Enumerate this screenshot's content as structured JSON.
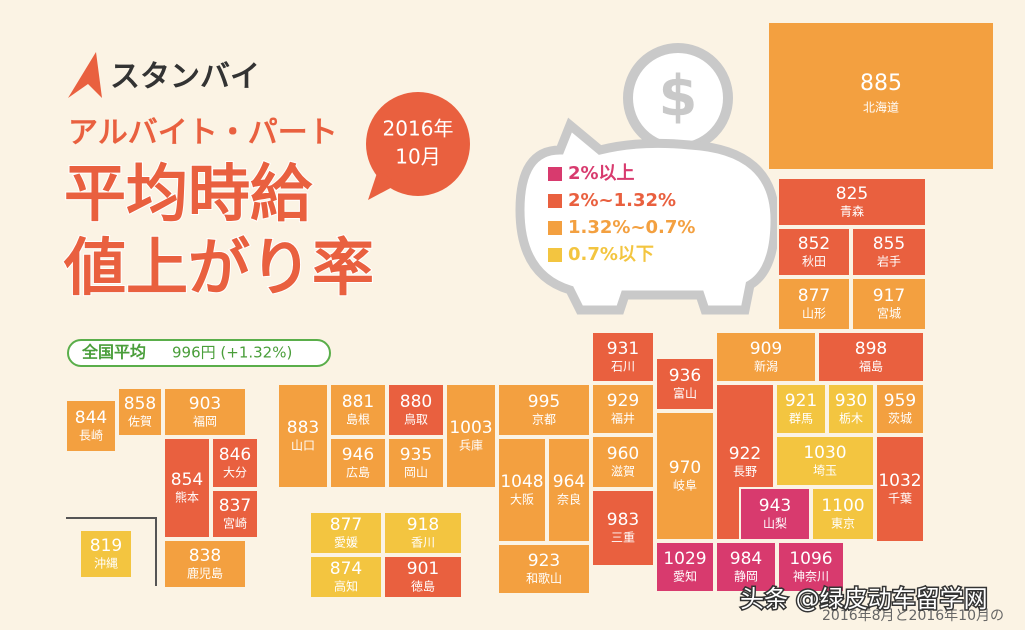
{
  "header": {
    "logo": "スタンバイ",
    "subtitle": "アルバイト・パート",
    "title_line1": "平均時給",
    "title_line2": "値上がり率",
    "date_year": "2016年",
    "date_month": "10月",
    "national_label": "全国平均",
    "national_value": "996円 (+1.32%)"
  },
  "legend": [
    {
      "label": "2%以上",
      "color": "#d83a6e"
    },
    {
      "label": "2%~1.32%",
      "color": "#e9603f"
    },
    {
      "label": "1.32%~0.7%",
      "color": "#f3a040"
    },
    {
      "label": "0.7%以下",
      "color": "#f3c540"
    }
  ],
  "prefectures": [
    {
      "name": "北海道",
      "value": 885,
      "color": "#f3a040"
    },
    {
      "name": "青森",
      "value": 825,
      "color": "#e9603f"
    },
    {
      "name": "秋田",
      "value": 852,
      "color": "#e9603f"
    },
    {
      "name": "岩手",
      "value": 855,
      "color": "#e9603f"
    },
    {
      "name": "山形",
      "value": 877,
      "color": "#f3a040"
    },
    {
      "name": "宮城",
      "value": 917,
      "color": "#f3a040"
    },
    {
      "name": "新潟",
      "value": 909,
      "color": "#f3a040"
    },
    {
      "name": "福島",
      "value": 898,
      "color": "#e9603f"
    },
    {
      "name": "石川",
      "value": 931,
      "color": "#e9603f"
    },
    {
      "name": "富山",
      "value": 936,
      "color": "#e9603f"
    },
    {
      "name": "福井",
      "value": 929,
      "color": "#f3a040"
    },
    {
      "name": "群馬",
      "value": 921,
      "color": "#f3c540"
    },
    {
      "name": "栃木",
      "value": 930,
      "color": "#f3c540"
    },
    {
      "name": "茨城",
      "value": 959,
      "color": "#f3a040"
    },
    {
      "name": "長野",
      "value": 922,
      "color": "#e9603f"
    },
    {
      "name": "埼玉",
      "value": 1030,
      "color": "#f3c540"
    },
    {
      "name": "千葉",
      "value": 1032,
      "color": "#e9603f"
    },
    {
      "name": "山梨",
      "value": 943,
      "color": "#d83a6e"
    },
    {
      "name": "東京",
      "value": 1100,
      "color": "#f3c540"
    },
    {
      "name": "岐阜",
      "value": 970,
      "color": "#f3a040"
    },
    {
      "name": "滋賀",
      "value": 960,
      "color": "#f3a040"
    },
    {
      "name": "京都",
      "value": 995,
      "color": "#f3a040"
    },
    {
      "name": "兵庫",
      "value": 1003,
      "color": "#f3a040"
    },
    {
      "name": "大阪",
      "value": 1048,
      "color": "#f3a040"
    },
    {
      "name": "奈良",
      "value": 964,
      "color": "#f3a040"
    },
    {
      "name": "三重",
      "value": 983,
      "color": "#e9603f"
    },
    {
      "name": "和歌山",
      "value": 923,
      "color": "#f3a040"
    },
    {
      "name": "愛知",
      "value": 1029,
      "color": "#d83a6e"
    },
    {
      "name": "静岡",
      "value": 984,
      "color": "#d83a6e"
    },
    {
      "name": "神奈川",
      "value": 1096,
      "color": "#d83a6e"
    },
    {
      "name": "山口",
      "value": 883,
      "color": "#f3a040"
    },
    {
      "name": "島根",
      "value": 881,
      "color": "#f3a040"
    },
    {
      "name": "鳥取",
      "value": 880,
      "color": "#e9603f"
    },
    {
      "name": "広島",
      "value": 946,
      "color": "#f3a040"
    },
    {
      "name": "岡山",
      "value": 935,
      "color": "#f3a040"
    },
    {
      "name": "愛媛",
      "value": 877,
      "color": "#f3c540"
    },
    {
      "name": "香川",
      "value": 918,
      "color": "#f3c540"
    },
    {
      "name": "高知",
      "value": 874,
      "color": "#f3c540"
    },
    {
      "name": "徳島",
      "value": 901,
      "color": "#e9603f"
    },
    {
      "name": "長崎",
      "value": 844,
      "color": "#f3a040"
    },
    {
      "name": "佐賀",
      "value": 858,
      "color": "#f3a040"
    },
    {
      "name": "福岡",
      "value": 903,
      "color": "#f3a040"
    },
    {
      "name": "熊本",
      "value": 854,
      "color": "#e9603f"
    },
    {
      "name": "大分",
      "value": 846,
      "color": "#e9603f"
    },
    {
      "name": "宮崎",
      "value": 837,
      "color": "#e9603f"
    },
    {
      "name": "鹿児島",
      "value": 838,
      "color": "#f3a040"
    },
    {
      "name": "沖縄",
      "value": 819,
      "color": "#f3c540"
    }
  ],
  "footer": {
    "source": "2016年8月と2016年10月の",
    "watermark": "头条 @绿皮动车留学网"
  }
}
